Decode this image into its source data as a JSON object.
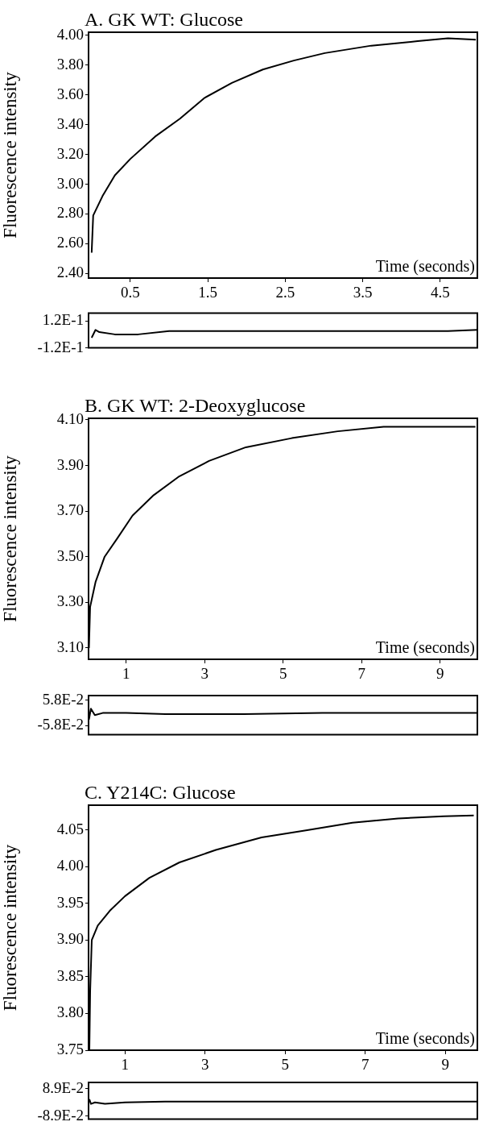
{
  "chart_data": [
    {
      "type": "line",
      "title": "A. GK WT: Glucose",
      "xlabel": "Time (seconds)",
      "ylabel": "Fluorescence intensity",
      "color": "#000000",
      "x": [
        0.0,
        0.02,
        0.14,
        0.3,
        0.5,
        0.82,
        1.14,
        1.46,
        1.81,
        2.21,
        2.61,
        3.01,
        3.61,
        4.21,
        4.6,
        4.96
      ],
      "values": [
        2.54,
        2.79,
        2.92,
        3.06,
        3.17,
        3.32,
        3.44,
        3.58,
        3.68,
        3.77,
        3.83,
        3.88,
        3.93,
        3.96,
        3.98,
        3.97
      ],
      "xlim": [
        -0.04,
        4.98
      ],
      "ylim": [
        2.37,
        4.02
      ],
      "xticks": [
        0.5,
        1.5,
        2.5,
        3.5,
        4.5
      ],
      "yticks": [
        {
          "value": 2.4,
          "label": "2.40"
        },
        {
          "value": 2.6,
          "label": "2.60"
        },
        {
          "value": 2.8,
          "label": "2.80"
        },
        {
          "value": 3.0,
          "label": "3.00"
        },
        {
          "value": 3.2,
          "label": "3.20"
        },
        {
          "value": 3.4,
          "label": "3.40"
        },
        {
          "value": 3.6,
          "label": "3.60"
        },
        {
          "value": 3.8,
          "label": "3.80"
        },
        {
          "value": 4.0,
          "label": "4.00"
        }
      ]
    },
    {
      "type": "line",
      "color": "#000000",
      "tick_labels": "y",
      "x": [
        0.0,
        0.05,
        0.1,
        0.3,
        0.6,
        1.0,
        2.0,
        3.0,
        4.0,
        4.6,
        4.98
      ],
      "values": [
        -0.03,
        0.04,
        0.02,
        0.0,
        0.0,
        0.03,
        0.03,
        0.03,
        0.03,
        0.03,
        0.04
      ],
      "xlim": [
        -0.04,
        4.98
      ],
      "ylim": [
        -0.12,
        0.19
      ],
      "yticks": [
        {
          "value": 0.12,
          "label": "1.2E-1"
        },
        {
          "value": -0.12,
          "label": "-1.2E-1"
        }
      ]
    },
    {
      "type": "line",
      "title": "B. GK WT: 2-Deoxyglucose",
      "xlabel": "Time (seconds)",
      "ylabel": "Fluorescence intensity",
      "color": "#000000",
      "x": [
        0.05,
        0.08,
        0.22,
        0.45,
        0.77,
        1.16,
        1.7,
        2.33,
        3.11,
        4.05,
        5.22,
        6.39,
        7.56,
        8.73,
        9.9
      ],
      "values": [
        3.1,
        3.28,
        3.39,
        3.5,
        3.58,
        3.68,
        3.77,
        3.85,
        3.92,
        3.98,
        4.02,
        4.05,
        4.07,
        4.07,
        4.07
      ],
      "xlim": [
        0.04,
        9.95
      ],
      "ylim": [
        3.05,
        4.107
      ],
      "xticks": [
        1,
        3,
        5,
        7,
        9
      ],
      "yticks": [
        {
          "value": 3.1,
          "label": "3.10"
        },
        {
          "value": 3.3,
          "label": "3.30"
        },
        {
          "value": 3.5,
          "label": "3.50"
        },
        {
          "value": 3.7,
          "label": "3.70"
        },
        {
          "value": 3.9,
          "label": "3.90"
        },
        {
          "value": 4.1,
          "label": "4.10"
        }
      ]
    },
    {
      "type": "line",
      "color": "#000000",
      "tick_labels": "y",
      "x": [
        0.05,
        0.1,
        0.2,
        0.4,
        1.0,
        2.0,
        4.0,
        6.0,
        8.0,
        9.95
      ],
      "values": [
        -0.03,
        0.02,
        -0.01,
        0.0,
        0.0,
        -0.005,
        -0.005,
        0.0,
        0.0,
        0.0
      ],
      "xlim": [
        0.04,
        9.95
      ],
      "ylim": [
        -0.1,
        0.08
      ],
      "yticks": [
        {
          "value": 0.058,
          "label": "5.8E-2"
        },
        {
          "value": -0.058,
          "label": "-5.8E-2"
        }
      ]
    },
    {
      "type": "line",
      "title": "C. Y214C: Glucose",
      "xlabel": "Time (seconds)",
      "ylabel": "Fluorescence intensity",
      "color": "#000000",
      "x": [
        0.11,
        0.13,
        0.17,
        0.32,
        0.62,
        1.0,
        1.61,
        2.36,
        3.27,
        4.41,
        5.55,
        6.68,
        7.82,
        8.96,
        9.71
      ],
      "values": [
        3.75,
        3.83,
        3.9,
        3.92,
        3.94,
        3.96,
        3.985,
        4.006,
        4.023,
        4.04,
        4.05,
        4.06,
        4.066,
        4.069,
        4.07
      ],
      "xlim": [
        0.09,
        9.8
      ],
      "ylim": [
        3.75,
        4.084
      ],
      "xticks": [
        1,
        3,
        5,
        7,
        9
      ],
      "yticks": [
        {
          "value": 3.75,
          "label": "3.75"
        },
        {
          "value": 3.8,
          "label": "3.80"
        },
        {
          "value": 3.85,
          "label": "3.85"
        },
        {
          "value": 3.9,
          "label": "3.90"
        },
        {
          "value": 3.95,
          "label": "3.95"
        },
        {
          "value": 4.0,
          "label": "4.00"
        },
        {
          "value": 4.05,
          "label": "4.05"
        }
      ]
    },
    {
      "type": "line",
      "color": "#000000",
      "tick_labels": "y",
      "x": [
        0.11,
        0.15,
        0.25,
        0.5,
        1.0,
        2.0,
        4.0,
        6.0,
        8.0,
        9.8
      ],
      "values": [
        0.02,
        -0.01,
        0.0,
        -0.01,
        0.0,
        0.005,
        0.005,
        0.005,
        0.005,
        0.005
      ],
      "xlim": [
        0.09,
        9.8
      ],
      "ylim": [
        -0.11,
        0.13
      ],
      "yticks": [
        {
          "value": 0.089,
          "label": "8.9E-2"
        },
        {
          "value": -0.089,
          "label": "-8.9E-2"
        }
      ]
    }
  ]
}
